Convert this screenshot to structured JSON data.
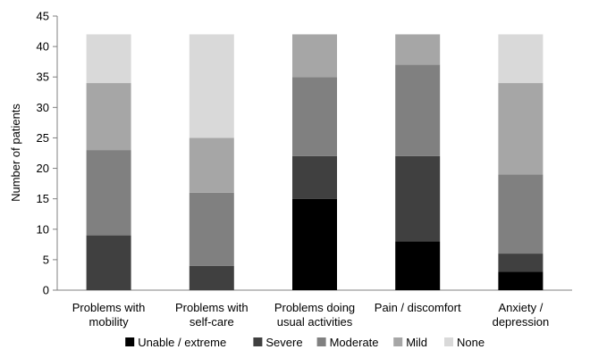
{
  "chart_data": {
    "type": "bar",
    "stacked": true,
    "categories": [
      [
        "Problems with",
        "mobility"
      ],
      [
        "Problems with",
        "self-care"
      ],
      [
        "Problems doing",
        "usual activities"
      ],
      [
        "Pain / discomfort"
      ],
      [
        "Anxiety /",
        "depression"
      ]
    ],
    "series": [
      {
        "name": "Unable / extreme",
        "color": "#000000",
        "values": [
          0,
          0,
          15,
          8,
          3
        ]
      },
      {
        "name": "Severe",
        "color": "#404040",
        "values": [
          9,
          4,
          7,
          14,
          3
        ]
      },
      {
        "name": "Moderate",
        "color": "#808080",
        "values": [
          14,
          12,
          13,
          15,
          13
        ]
      },
      {
        "name": "Mild",
        "color": "#a6a6a6",
        "values": [
          11,
          9,
          7,
          5,
          15
        ]
      },
      {
        "name": "None",
        "color": "#d9d9d9",
        "values": [
          8,
          17,
          0,
          0,
          8
        ]
      }
    ],
    "ylabel": "Number of patients",
    "xlabel": "",
    "ylim": [
      0,
      45
    ],
    "yticks": [
      0,
      5,
      10,
      15,
      20,
      25,
      30,
      35,
      40,
      45
    ],
    "grid": false,
    "legend_position": "bottom"
  }
}
